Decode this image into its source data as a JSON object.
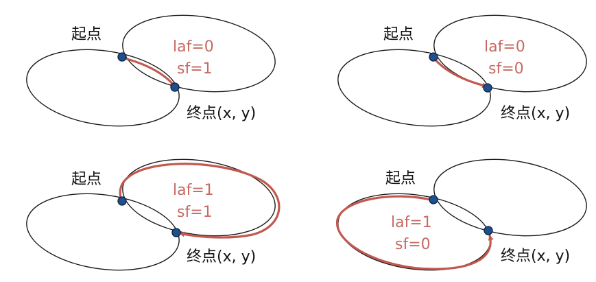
{
  "panels": [
    {
      "start_label": "起点",
      "end_label": "终点(x, y)",
      "laf": "laf=0",
      "sf": "sf=1"
    },
    {
      "start_label": "起点",
      "end_label": "终点(x, y)",
      "laf": "laf=0",
      "sf": "sf=0"
    },
    {
      "start_label": "起点",
      "end_label": "终点(x, y)",
      "laf": "laf=1",
      "sf": "sf=1"
    },
    {
      "start_label": "起点",
      "end_label": "终点(x, y)",
      "laf": "laf=1",
      "sf": "sf=0"
    }
  ],
  "colors": {
    "ellipse": "#1a1a1a",
    "arc": "#c2584f",
    "flag_text": "#c66a63",
    "point": "#1f4f8c"
  }
}
